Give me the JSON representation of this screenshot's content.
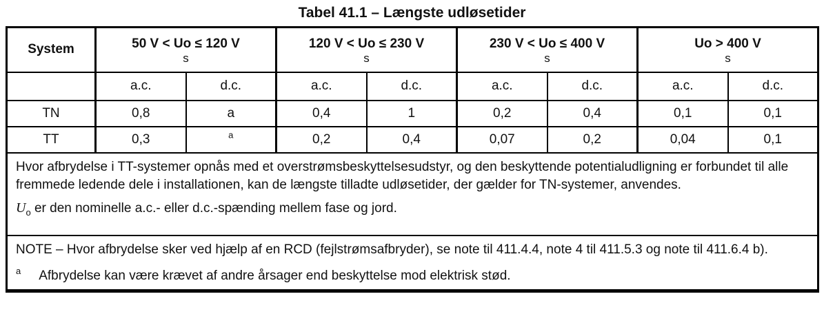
{
  "title": "Tabel 41.1 – Længste udløsetider",
  "table": {
    "system_header": "System",
    "unit": "s",
    "voltage_groups": [
      {
        "range": "50 V < Uo ≤ 120 V"
      },
      {
        "range": "120 V < Uo ≤ 230 V"
      },
      {
        "range": "230 V < Uo ≤ 400 V"
      },
      {
        "range": "Uo > 400 V"
      }
    ],
    "current_types": [
      "a.c.",
      "d.c."
    ],
    "rows": [
      {
        "system": "TN",
        "values": [
          "0,8",
          "a",
          "0,4",
          "1",
          "0,2",
          "0,4",
          "0,1",
          "0,1"
        ]
      },
      {
        "system": "TT",
        "values": [
          "0,3",
          "a",
          "0,2",
          "0,4",
          "0,07",
          "0,2",
          "0,04",
          "0,1"
        ]
      }
    ],
    "body_note_1": "Hvor afbrydelse i TT-systemer opnås med et overstrømsbeskyttelsesudstyr, og den beskyttende potentialudligning er forbundet til alle fremmede ledende dele i installationen, kan de længste tilladte udløsetider, der gælder for TN-systemer, anvendes.",
    "uo_symbol": "U",
    "uo_subscript": "o",
    "uo_text": " er den nominelle a.c.- eller d.c.-spænding mellem fase og jord.",
    "note": "NOTE – Hvor afbrydelse sker ved hjælp af en RCD (fejlstrømsafbryder), se note til 411.4.4, note 4 til 411.5.3 og note til 411.6.4 b).",
    "footnote_marker": "a",
    "footnote_text": "Afbrydelse kan være krævet af andre årsager end beskyttelse mod elektrisk stød."
  },
  "colors": {
    "text": "#111111",
    "border": "#000000",
    "background": "#ffffff"
  }
}
